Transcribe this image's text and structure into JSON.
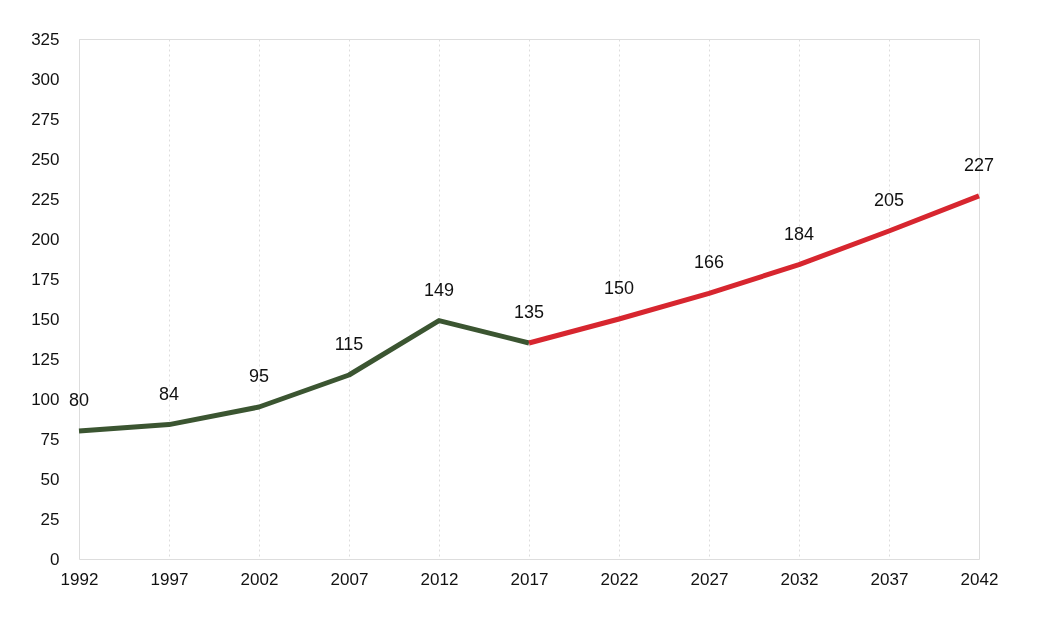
{
  "chart_data": {
    "type": "line",
    "xlim": [
      1992,
      2042
    ],
    "xticks": [
      1992,
      1997,
      2002,
      2007,
      2012,
      2017,
      2022,
      2027,
      2032,
      2037,
      2042
    ],
    "ylim": [
      0,
      325
    ],
    "yticks": [
      0,
      25,
      50,
      75,
      100,
      125,
      150,
      175,
      200,
      225,
      250,
      275,
      300,
      325
    ],
    "grid": "x",
    "marker": "none",
    "line_style": "solid",
    "series": [
      {
        "color": "#3b5531",
        "x": [
          1992,
          1997,
          2002,
          2007,
          2012,
          2017
        ],
        "values": [
          80,
          84,
          95,
          115,
          149,
          135
        ],
        "value_labels": [
          "80",
          "84",
          "95",
          "115",
          "149",
          "135"
        ]
      },
      {
        "color": "#d7262f",
        "x": [
          2017,
          2022,
          2027,
          2032,
          2037,
          2042
        ],
        "values": [
          135,
          150,
          166,
          184,
          205,
          227
        ],
        "value_labels": [
          null,
          "150",
          "166",
          "184",
          "205",
          "227"
        ]
      }
    ]
  }
}
